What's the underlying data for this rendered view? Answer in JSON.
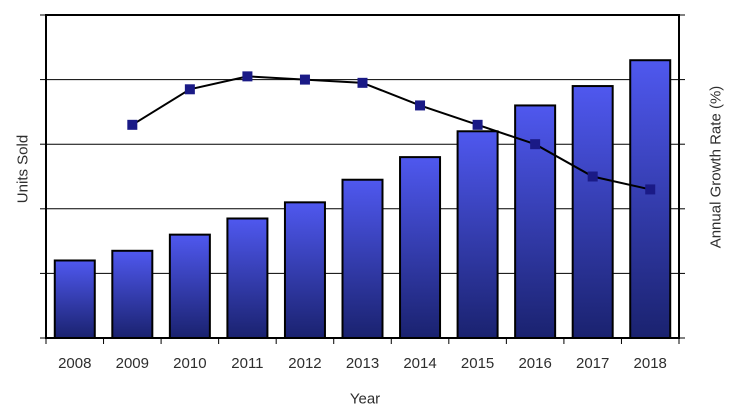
{
  "chart_data": {
    "type": "combo",
    "title": "",
    "categories": [
      "2008",
      "2009",
      "2010",
      "2011",
      "2012",
      "2013",
      "2014",
      "2015",
      "2016",
      "2017",
      "2018"
    ],
    "series": [
      {
        "name": "Units Sold",
        "type": "bar",
        "axis": "left",
        "values": [
          1.2,
          1.35,
          1.6,
          1.85,
          2.1,
          2.45,
          2.8,
          3.2,
          3.6,
          3.9,
          4.3
        ]
      },
      {
        "name": "Annual Growth Rate (%)",
        "type": "line",
        "axis": "right",
        "values": [
          null,
          3.3,
          3.85,
          4.05,
          4.0,
          3.95,
          3.6,
          3.3,
          3.0,
          2.5,
          2.3
        ]
      }
    ],
    "xlabel": "Year",
    "ylabel_left": "Units Sold",
    "ylabel_right": "Annual Growth Rate (%)",
    "ylim": [
      0,
      5
    ],
    "value_units": "gridline divisions (both value axes have no numeric tick labels)",
    "gridlines": true,
    "gridline_values": [
      1,
      2,
      3,
      4
    ],
    "legend": "none",
    "colors": {
      "bar_top": "#4f58ef",
      "bar_bottom": "#1a226f",
      "bar_border": "#000000",
      "line": "#000000",
      "marker": "#1a1a86",
      "axis": "#000000",
      "grid": "#000000",
      "text": "#2e2e2e",
      "background": "#ffffff"
    }
  }
}
